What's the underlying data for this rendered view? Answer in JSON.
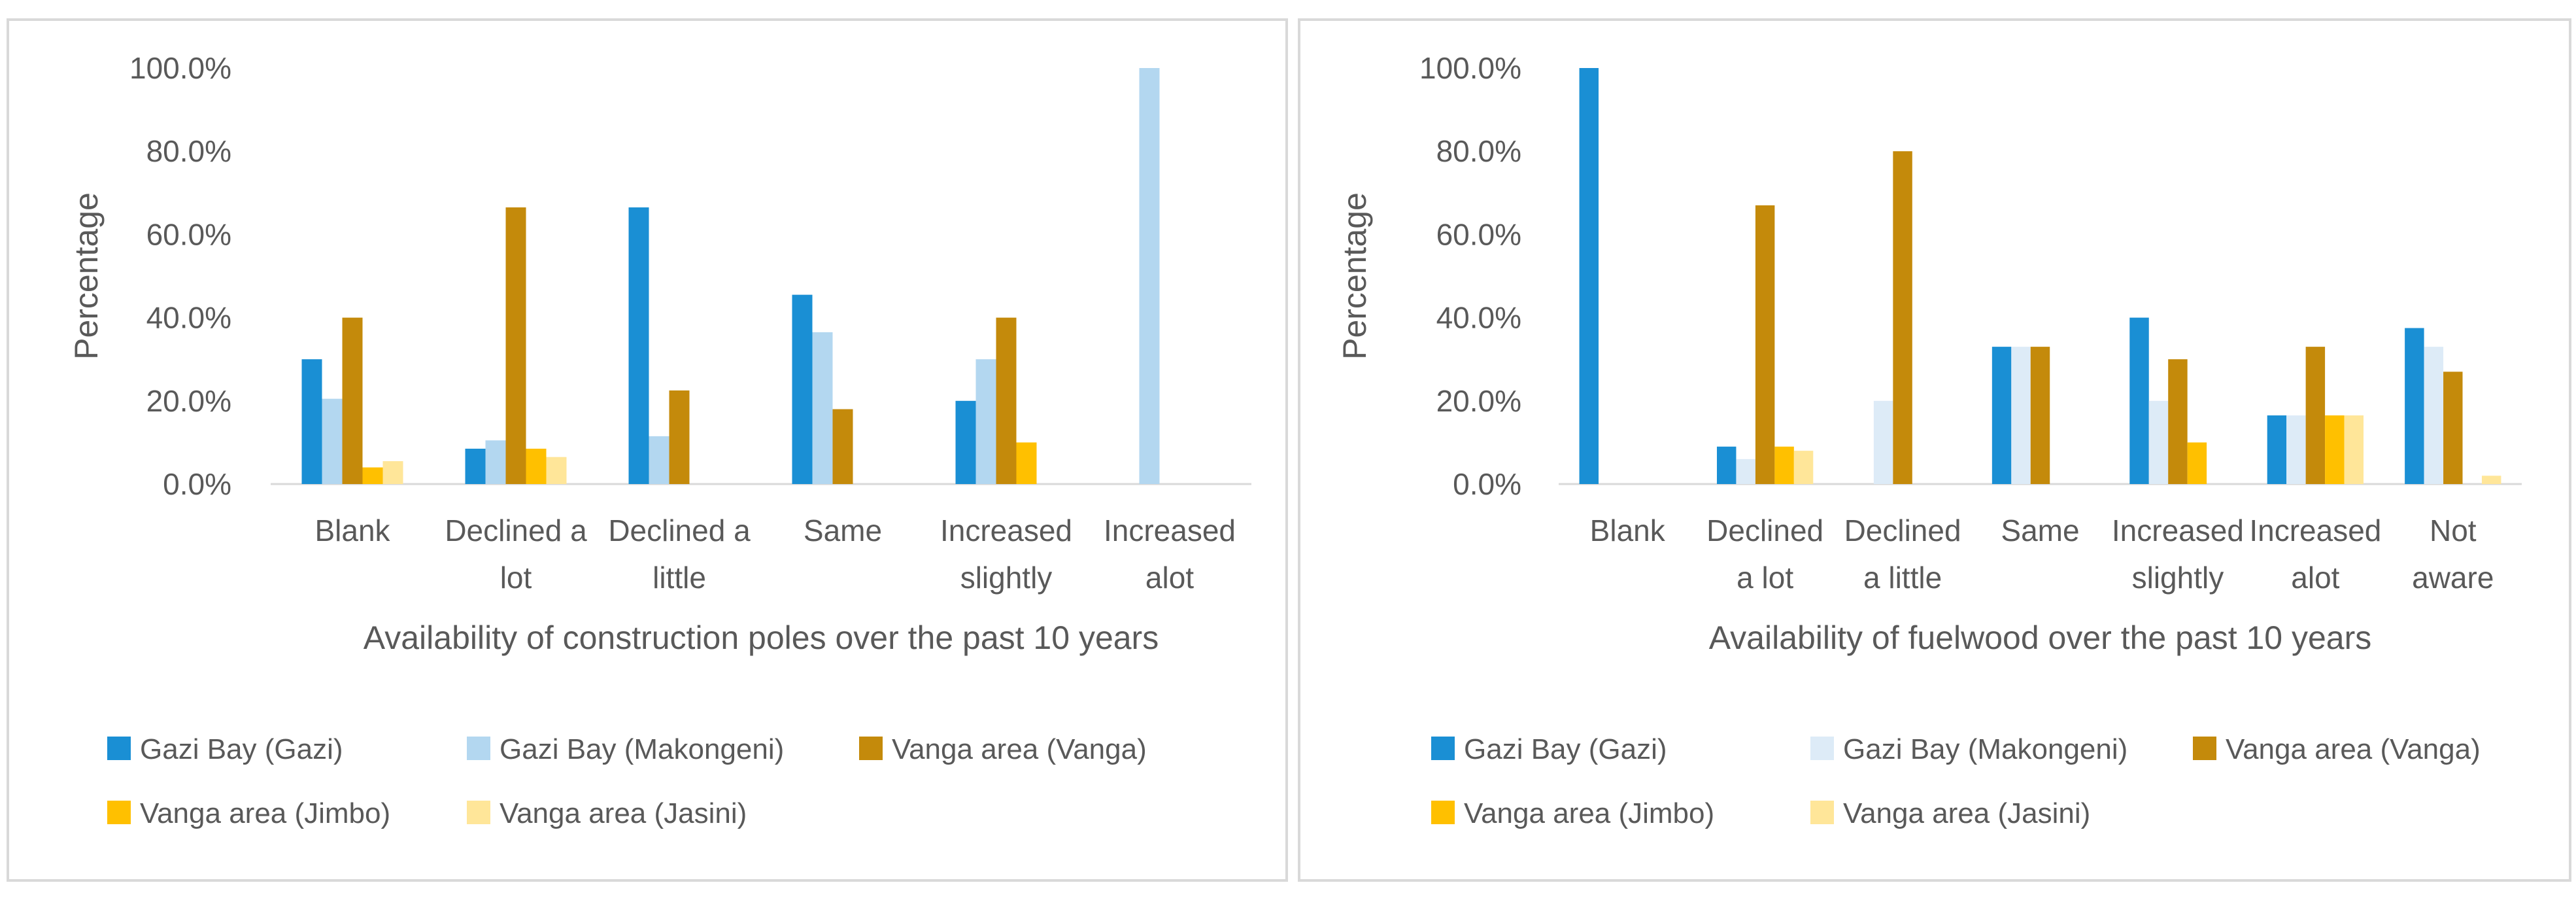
{
  "chart_data": [
    {
      "type": "bar",
      "title": "",
      "xlabel": "Availability of construction poles over the past 10 years",
      "ylabel": "Percentage",
      "ylim": [
        0,
        100
      ],
      "yticks": [
        "0.0%",
        "20.0%",
        "40.0%",
        "60.0%",
        "80.0%",
        "100.0%"
      ],
      "categories": [
        [
          "Blank"
        ],
        [
          "Declined a",
          "lot"
        ],
        [
          "Declined a",
          "little"
        ],
        [
          "Same"
        ],
        [
          "Increased",
          "slightly"
        ],
        [
          "Increased",
          "alot"
        ]
      ],
      "series": [
        {
          "name": "Gazi Bay (Gazi)",
          "color": "#1a8fd4",
          "values": [
            30,
            8.5,
            66.5,
            45.5,
            20,
            0
          ]
        },
        {
          "name": "Gazi Bay (Makongeni)",
          "color": "#b3d7f0",
          "values": [
            20.5,
            10.5,
            11.5,
            36.5,
            30,
            100
          ]
        },
        {
          "name": "Vanga area (Vanga)",
          "color": "#c48a0b",
          "values": [
            40,
            66.5,
            22.5,
            18,
            40,
            0
          ]
        },
        {
          "name": "Vanga area (Jimbo)",
          "color": "#ffc000",
          "values": [
            4,
            8.5,
            0,
            0,
            10,
            0
          ]
        },
        {
          "name": "Vanga area (Jasini)",
          "color": "#ffe699",
          "values": [
            5.5,
            6.5,
            0,
            0,
            0,
            0
          ]
        }
      ],
      "legend_position": "bottom"
    },
    {
      "type": "bar",
      "title": "",
      "xlabel": "Availability of fuelwood over the past 10 years",
      "ylabel": "Percentage",
      "ylim": [
        0,
        100
      ],
      "yticks": [
        "0.0%",
        "20.0%",
        "40.0%",
        "60.0%",
        "80.0%",
        "100.0%"
      ],
      "categories": [
        [
          "Blank"
        ],
        [
          "Declined",
          "a lot"
        ],
        [
          "Declined",
          "a little"
        ],
        [
          "Same"
        ],
        [
          "Increased",
          "slightly"
        ],
        [
          "Increased",
          "alot"
        ],
        [
          "Not",
          "aware"
        ]
      ],
      "series": [
        {
          "name": "Gazi Bay (Gazi)",
          "color": "#1a8fd4",
          "values": [
            100,
            9,
            0,
            33,
            40,
            16.5,
            37.5
          ]
        },
        {
          "name": "Gazi Bay (Makongeni)",
          "color": "#ddebf7",
          "values": [
            0,
            6,
            20,
            33,
            20,
            16.5,
            33
          ]
        },
        {
          "name": "Vanga area (Vanga)",
          "color": "#c48a0b",
          "values": [
            0,
            67,
            80,
            33,
            30,
            33,
            27
          ]
        },
        {
          "name": "Vanga area (Jimbo)",
          "color": "#ffc000",
          "values": [
            0,
            9,
            0,
            0,
            10,
            16.5,
            0
          ]
        },
        {
          "name": "Vanga area (Jasini)",
          "color": "#ffe699",
          "values": [
            0,
            8,
            0,
            0,
            0,
            16.5,
            2
          ]
        }
      ],
      "legend_position": "bottom"
    }
  ]
}
